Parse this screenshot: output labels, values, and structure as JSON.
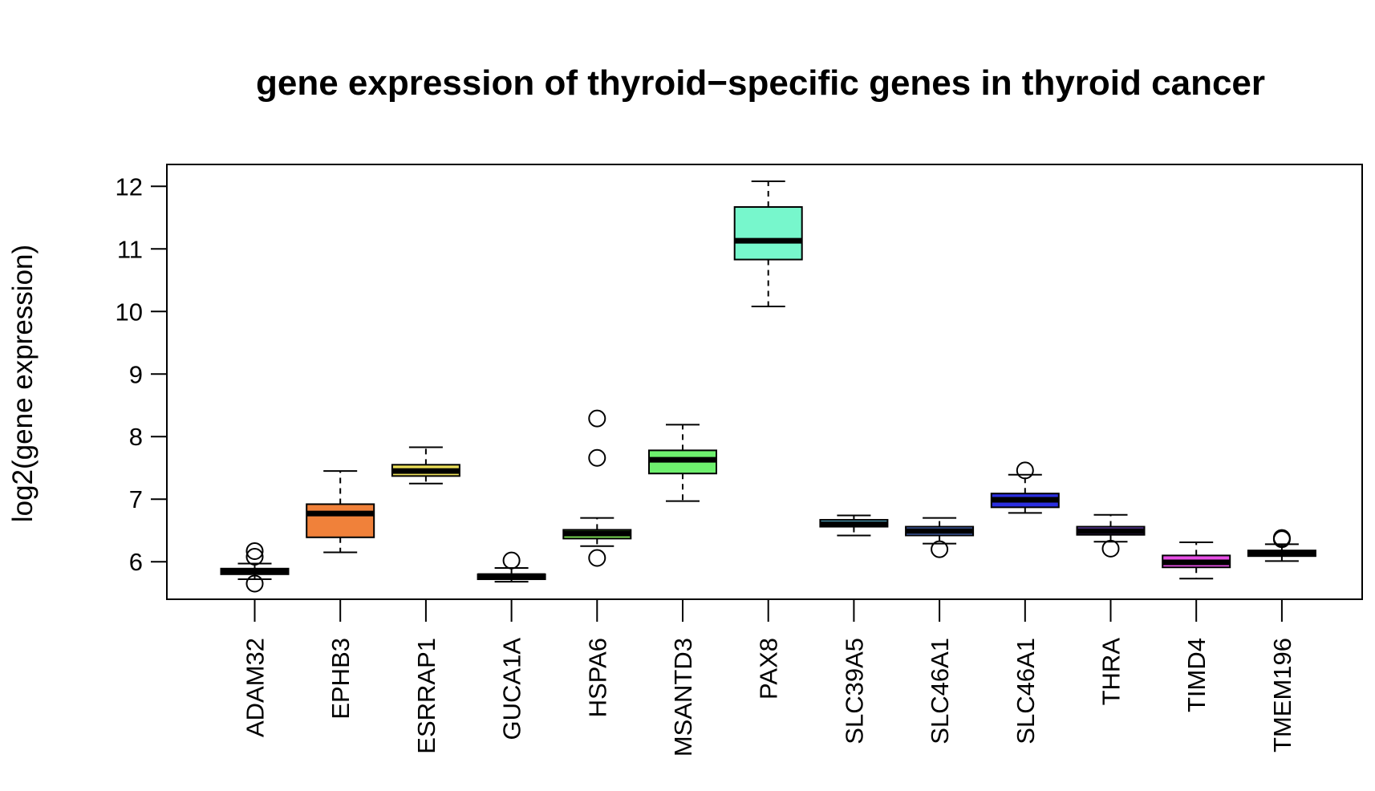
{
  "chart_data": {
    "type": "boxplot",
    "title": "gene expression of thyroid−specific genes in thyroid cancer",
    "xlabel": "",
    "ylabel": "log2(gene expression)",
    "ylim": [
      5.4,
      12.35
    ],
    "yticks": [
      6,
      7,
      8,
      9,
      10,
      11,
      12
    ],
    "grid": false,
    "legend": "none",
    "categories": [
      "ADAM32",
      "EPHB3",
      "ESRRAP1",
      "GUCA1A",
      "HSPA6",
      "MSANTD3",
      "PAX8",
      "SLC39A5",
      "SLC46A1",
      "SLC46A1",
      "THRA",
      "TIMD4",
      "TMEM196"
    ],
    "boxes": [
      {
        "category": "ADAM32",
        "whisker_low": 5.72,
        "q1": 5.8,
        "median": 5.84,
        "q3": 5.89,
        "whisker_high": 5.97,
        "outliers": [
          6.17,
          6.08,
          5.65
        ],
        "color": "#e4231b"
      },
      {
        "category": "EPHB3",
        "whisker_low": 6.15,
        "q1": 6.39,
        "median": 6.77,
        "q3": 6.92,
        "whisker_high": 7.45,
        "outliers": [],
        "color": "#f0813a"
      },
      {
        "category": "ESRRAP1",
        "whisker_low": 7.25,
        "q1": 7.37,
        "median": 7.45,
        "q3": 7.55,
        "whisker_high": 7.83,
        "outliers": [],
        "color": "#ece05a"
      },
      {
        "category": "GUCA1A",
        "whisker_low": 5.68,
        "q1": 5.72,
        "median": 5.77,
        "q3": 5.8,
        "whisker_high": 5.9,
        "outliers": [
          6.02
        ],
        "color": "#c2ec54"
      },
      {
        "category": "HSPA6",
        "whisker_low": 6.25,
        "q1": 6.37,
        "median": 6.45,
        "q3": 6.51,
        "whisker_high": 6.7,
        "outliers": [
          8.29,
          7.66,
          6.06
        ],
        "color": "#83ec58"
      },
      {
        "category": "MSANTD3",
        "whisker_low": 6.97,
        "q1": 7.41,
        "median": 7.63,
        "q3": 7.78,
        "whisker_high": 8.19,
        "outliers": [],
        "color": "#6ef06e"
      },
      {
        "category": "PAX8",
        "whisker_low": 10.08,
        "q1": 10.83,
        "median": 11.13,
        "q3": 11.67,
        "whisker_high": 12.08,
        "outliers": [],
        "color": "#77f7cc"
      },
      {
        "category": "SLC39A5",
        "whisker_low": 6.42,
        "q1": 6.56,
        "median": 6.6,
        "q3": 6.67,
        "whisker_high": 6.74,
        "outliers": [],
        "color": "#66cdee"
      },
      {
        "category": "SLC46A1",
        "whisker_low": 6.29,
        "q1": 6.42,
        "median": 6.49,
        "q3": 6.56,
        "whisker_high": 6.7,
        "outliers": [
          6.2
        ],
        "color": "#5b86ee"
      },
      {
        "category": "SLC46A1",
        "whisker_low": 6.78,
        "q1": 6.87,
        "median": 6.99,
        "q3": 7.09,
        "whisker_high": 7.39,
        "outliers": [
          7.46
        ],
        "color": "#2b2fe0"
      },
      {
        "category": "THRA",
        "whisker_low": 6.32,
        "q1": 6.43,
        "median": 6.49,
        "q3": 6.56,
        "whisker_high": 6.75,
        "outliers": [
          6.21
        ],
        "color": "#8a55e8"
      },
      {
        "category": "TIMD4",
        "whisker_low": 5.73,
        "q1": 5.91,
        "median": 5.99,
        "q3": 6.1,
        "whisker_high": 6.31,
        "outliers": [],
        "color": "#e850e6"
      },
      {
        "category": "TMEM196",
        "whisker_low": 6.01,
        "q1": 6.09,
        "median": 6.13,
        "q3": 6.18,
        "whisker_high": 6.28,
        "outliers": [
          6.38,
          6.36
        ],
        "color": "#e8447f"
      }
    ]
  }
}
